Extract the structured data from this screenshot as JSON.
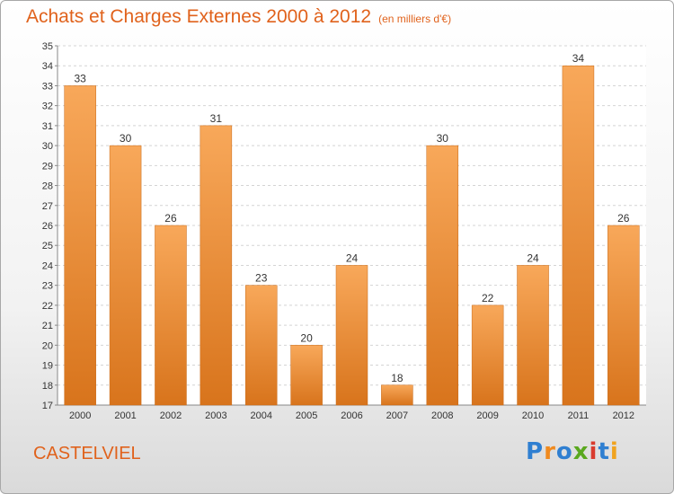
{
  "header": {
    "title": "Achats et Charges Externes 2000 à 2012",
    "unit_note": "(en milliers d'€)"
  },
  "footer": {
    "commune": "CASTELVIEL",
    "logo_text": "Proxiti"
  },
  "colors": {
    "bar_light": "#f8a85a",
    "bar_dark": "#d8741c",
    "title": "#e0621c"
  },
  "chart_data": {
    "type": "bar",
    "title": "Achats et Charges Externes 2000 à 2012",
    "subtitle": "(en milliers d'€)",
    "xlabel": "",
    "ylabel": "",
    "categories": [
      "2000",
      "2001",
      "2002",
      "2003",
      "2004",
      "2005",
      "2006",
      "2007",
      "2008",
      "2009",
      "2010",
      "2011",
      "2012"
    ],
    "values": [
      33,
      30,
      26,
      31,
      23,
      20,
      24,
      18,
      30,
      22,
      24,
      34,
      26
    ],
    "ylim": [
      17,
      35
    ],
    "yticks": [
      17,
      18,
      19,
      20,
      21,
      22,
      23,
      24,
      25,
      26,
      27,
      28,
      29,
      30,
      31,
      32,
      33,
      34,
      35
    ],
    "grid": true,
    "legend": "none",
    "data_labels": true
  }
}
